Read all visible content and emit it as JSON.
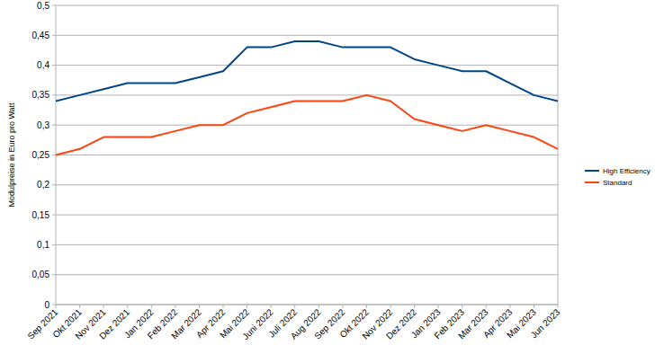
{
  "chart_data": {
    "type": "line",
    "y_label": "Modulpreise in Euro pro Watt",
    "categories": [
      "Sep 2021",
      "Okt 2021",
      "Nov 2021",
      "Dez 2021",
      "Jan 2022",
      "Feb 2022",
      "Mar 2022",
      "Apr 2022",
      "Mai 2022",
      "Juni 2022",
      "Juli 2022",
      "Aug 2022",
      "Sep 2022",
      "Okt 2022",
      "Nov 2022",
      "Dez 2022",
      "Jan 2023",
      "Feb 2023",
      "Mar 2023",
      "Apr 2023",
      "Mai 2023",
      "Jun 2023"
    ],
    "series": [
      {
        "name": "High Efficiency",
        "color": "#004586",
        "values": [
          0.34,
          0.35,
          0.36,
          0.37,
          0.37,
          0.37,
          0.38,
          0.39,
          0.43,
          0.43,
          0.44,
          0.44,
          0.43,
          0.43,
          0.43,
          0.41,
          0.4,
          0.39,
          0.39,
          0.37,
          0.35,
          0.34
        ]
      },
      {
        "name": "Standard",
        "color": "#ff420e",
        "values": [
          0.25,
          0.26,
          0.28,
          0.28,
          0.28,
          0.29,
          0.3,
          0.3,
          0.32,
          0.33,
          0.34,
          0.34,
          0.34,
          0.35,
          0.34,
          0.31,
          0.3,
          0.29,
          0.3,
          0.29,
          0.28,
          0.26
        ]
      }
    ],
    "ylim": [
      0,
      0.5
    ],
    "yticks": [
      0,
      {
        "value": 0.05,
        "label": "0,05"
      },
      {
        "value": 0.1,
        "label": "0,1"
      },
      {
        "value": 0.15,
        "label": "0,15"
      },
      {
        "value": 0.2,
        "label": "0,2"
      },
      {
        "value": 0.25,
        "label": "0,25"
      },
      {
        "value": 0.3,
        "label": "0,3"
      },
      {
        "value": 0.35,
        "label": "0,35"
      },
      {
        "value": 0.4,
        "label": "0,4"
      },
      {
        "value": 0.45,
        "label": "0,45"
      },
      {
        "value": 0.5,
        "label": "0,5"
      }
    ],
    "grid": true,
    "legend": "right"
  }
}
